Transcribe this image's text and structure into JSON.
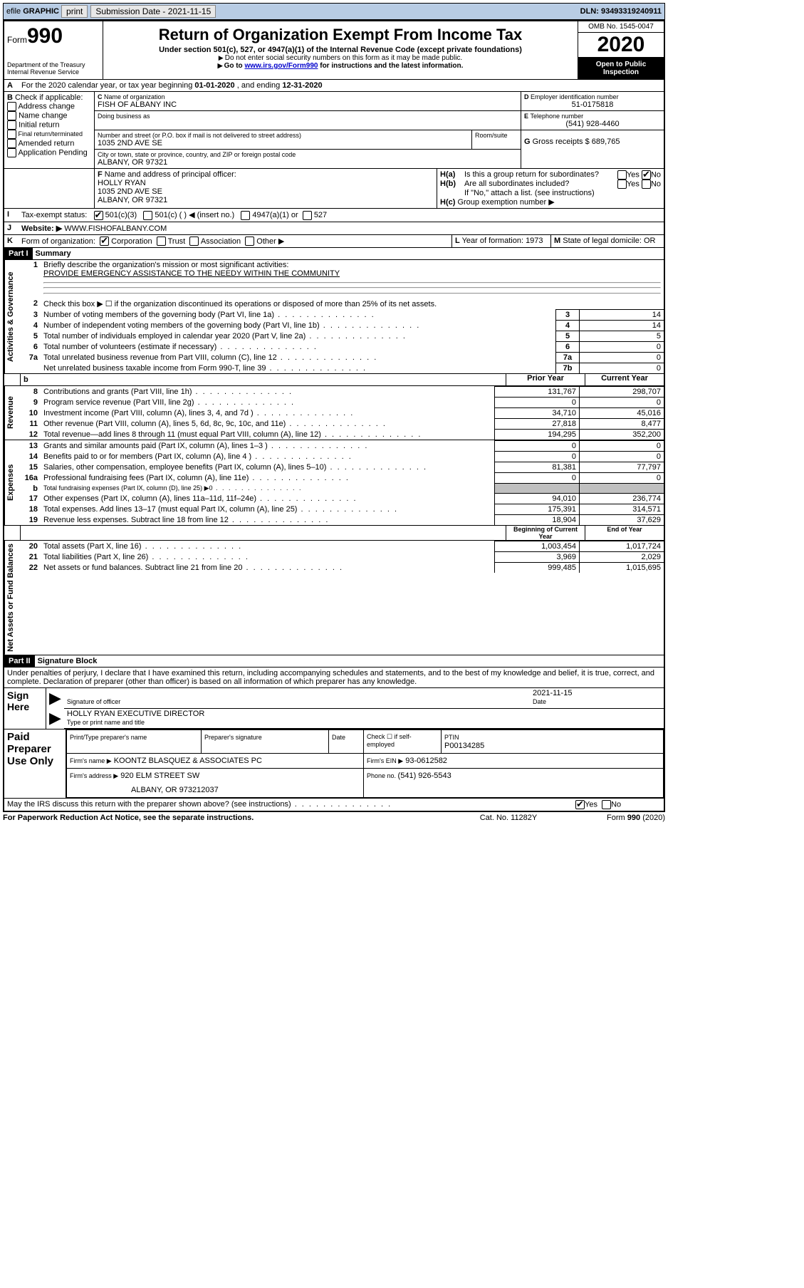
{
  "topbar": {
    "efile": "efile",
    "graphic": "GRAPHIC",
    "print": "print",
    "sub_label": "Submission Date - ",
    "sub_date": "2021-11-15",
    "dln_label": "DLN: ",
    "dln": "93493319240911"
  },
  "header": {
    "form_prefix": "Form",
    "form_no": "990",
    "dept": "Department of the Treasury\nInternal Revenue Service",
    "title": "Return of Organization Exempt From Income Tax",
    "sub1": "Under section 501(c), 527, or 4947(a)(1) of the Internal Revenue Code (except private foundations)",
    "sub2": "Do not enter social security numbers on this form as it may be made public.",
    "sub3_pre": "Go to ",
    "sub3_link": "www.irs.gov/Form990",
    "sub3_post": " for instructions and the latest information.",
    "omb": "OMB No. 1545-0047",
    "year": "2020",
    "open": "Open to Public Inspection"
  },
  "A": {
    "text": "For the 2020 calendar year, or tax year beginning ",
    "begin": "01-01-2020",
    "mid": " , and ending ",
    "end": "12-31-2020"
  },
  "B": {
    "label": "Check if applicable:",
    "items": [
      "Address change",
      "Name change",
      "Initial return",
      "Final return/terminated",
      "Amended return",
      "Application Pending"
    ]
  },
  "C": {
    "name_label": "Name of organization",
    "name": "FISH OF ALBANY INC",
    "dba_label": "Doing business as",
    "addr_label": "Number and street (or P.O. box if mail is not delivered to street address)",
    "room_label": "Room/suite",
    "addr": "1035 2ND AVE SE",
    "city_label": "City or town, state or province, country, and ZIP or foreign postal code",
    "city": "ALBANY, OR  97321"
  },
  "D": {
    "label": "Employer identification number",
    "val": "51-0175818"
  },
  "E": {
    "label": "Telephone number",
    "val": "(541) 928-4460"
  },
  "G": {
    "label": "Gross receipts $ ",
    "val": "689,765"
  },
  "F": {
    "label": "Name and address of principal officer:",
    "name": "HOLLY RYAN",
    "addr1": "1035 2ND AVE SE",
    "addr2": "ALBANY, OR  97321"
  },
  "H": {
    "a": "Is this a group return for subordinates?",
    "b": "Are all subordinates included?",
    "b_note": "If \"No,\" attach a list. (see instructions)",
    "c": "Group exemption number ▶"
  },
  "I": {
    "label": "Tax-exempt status:",
    "opts": [
      "501(c)(3)",
      "501(c) (  ) ◀ (insert no.)",
      "4947(a)(1) or",
      "527"
    ]
  },
  "J": {
    "label": "Website: ▶",
    "val": "WWW.FISHOFALBANY.COM"
  },
  "K": {
    "label": "Form of organization:",
    "opts": [
      "Corporation",
      "Trust",
      "Association",
      "Other ▶"
    ]
  },
  "L": {
    "label": "Year of formation: ",
    "val": "1973"
  },
  "M": {
    "label": "State of legal domicile: ",
    "val": "OR"
  },
  "part1": {
    "title": "Part I",
    "sub": "Summary",
    "line1_label": "Briefly describe the organization's mission or most significant activities:",
    "line1_val": "PROVIDE EMERGENCY ASSISTANCE TO THE NEEDY WITHIN THE COMMUNITY",
    "line2": "Check this box ▶ ☐  if the organization discontinued its operations or disposed of more than 25% of its net assets.",
    "hdr_prior": "Prior Year",
    "hdr_current": "Current Year",
    "hdr_beg": "Beginning of Current Year",
    "hdr_end": "End of Year",
    "lines_gov": [
      {
        "n": "3",
        "t": "Number of voting members of the governing body (Part VI, line 1a)",
        "m": "3",
        "v": "14"
      },
      {
        "n": "4",
        "t": "Number of independent voting members of the governing body (Part VI, line 1b)",
        "m": "4",
        "v": "14"
      },
      {
        "n": "5",
        "t": "Total number of individuals employed in calendar year 2020 (Part V, line 2a)",
        "m": "5",
        "v": "5"
      },
      {
        "n": "6",
        "t": "Total number of volunteers (estimate if necessary)",
        "m": "6",
        "v": "0"
      },
      {
        "n": "7a",
        "t": "Total unrelated business revenue from Part VIII, column (C), line 12",
        "m": "7a",
        "v": "0"
      },
      {
        "n": "",
        "t": "Net unrelated business taxable income from Form 990-T, line 39",
        "m": "7b",
        "v": "0"
      }
    ],
    "lines_rev": [
      {
        "n": "8",
        "t": "Contributions and grants (Part VIII, line 1h)",
        "p": "131,767",
        "c": "298,707"
      },
      {
        "n": "9",
        "t": "Program service revenue (Part VIII, line 2g)",
        "p": "0",
        "c": "0"
      },
      {
        "n": "10",
        "t": "Investment income (Part VIII, column (A), lines 3, 4, and 7d )",
        "p": "34,710",
        "c": "45,016"
      },
      {
        "n": "11",
        "t": "Other revenue (Part VIII, column (A), lines 5, 6d, 8c, 9c, 10c, and 11e)",
        "p": "27,818",
        "c": "8,477"
      },
      {
        "n": "12",
        "t": "Total revenue—add lines 8 through 11 (must equal Part VIII, column (A), line 12)",
        "p": "194,295",
        "c": "352,200"
      }
    ],
    "lines_exp": [
      {
        "n": "13",
        "t": "Grants and similar amounts paid (Part IX, column (A), lines 1–3 )",
        "p": "0",
        "c": "0"
      },
      {
        "n": "14",
        "t": "Benefits paid to or for members (Part IX, column (A), line 4 )",
        "p": "0",
        "c": "0"
      },
      {
        "n": "15",
        "t": "Salaries, other compensation, employee benefits (Part IX, column (A), lines 5–10)",
        "p": "81,381",
        "c": "77,797"
      },
      {
        "n": "16a",
        "t": "Professional fundraising fees (Part IX, column (A), line 11e)",
        "p": "0",
        "c": "0"
      },
      {
        "n": "b",
        "t": "Total fundraising expenses (Part IX, column (D), line 25) ▶0",
        "p": "",
        "c": "",
        "shade": true,
        "small": true
      },
      {
        "n": "17",
        "t": "Other expenses (Part IX, column (A), lines 11a–11d, 11f–24e)",
        "p": "94,010",
        "c": "236,774"
      },
      {
        "n": "18",
        "t": "Total expenses. Add lines 13–17 (must equal Part IX, column (A), line 25)",
        "p": "175,391",
        "c": "314,571"
      },
      {
        "n": "19",
        "t": "Revenue less expenses. Subtract line 18 from line 12",
        "p": "18,904",
        "c": "37,629"
      }
    ],
    "lines_net": [
      {
        "n": "20",
        "t": "Total assets (Part X, line 16)",
        "p": "1,003,454",
        "c": "1,017,724"
      },
      {
        "n": "21",
        "t": "Total liabilities (Part X, line 26)",
        "p": "3,969",
        "c": "2,029"
      },
      {
        "n": "22",
        "t": "Net assets or fund balances. Subtract line 21 from line 20",
        "p": "999,485",
        "c": "1,015,695"
      }
    ]
  },
  "part2": {
    "title": "Part II",
    "sub": "Signature Block",
    "perjury": "Under penalties of perjury, I declare that I have examined this return, including accompanying schedules and statements, and to the best of my knowledge and belief, it is true, correct, and complete. Declaration of preparer (other than officer) is based on all information of which preparer has any knowledge.",
    "sign_here": "Sign Here",
    "sig_officer": "Signature of officer",
    "date_label": "Date",
    "sig_date": "2021-11-15",
    "officer_name": "HOLLY RYAN EXECUTIVE DIRECTOR",
    "type_name": "Type or print name and title",
    "paid": "Paid Preparer Use Only",
    "prep_name_label": "Print/Type preparer's name",
    "prep_sig_label": "Preparer's signature",
    "check_self": "Check ☐ if self-employed",
    "ptin_label": "PTIN",
    "ptin": "P00134285",
    "firm_name_label": "Firm's name    ▶",
    "firm_name": "KOONTZ BLASQUEZ & ASSOCIATES PC",
    "firm_ein_label": "Firm's EIN ▶",
    "firm_ein": "93-0612582",
    "firm_addr_label": "Firm's address ▶",
    "firm_addr1": "920 ELM STREET SW",
    "firm_addr2": "ALBANY, OR  973212037",
    "phone_label": "Phone no. ",
    "phone": "(541) 926-5543",
    "discuss": "May the IRS discuss this return with the preparer shown above? (see instructions)",
    "paperwork": "For Paperwork Reduction Act Notice, see the separate instructions.",
    "catno": "Cat. No. 11282Y",
    "formno": "Form 990 (2020)"
  },
  "labels": {
    "yes": "Yes",
    "no": "No",
    "b": "b"
  },
  "sections": {
    "gov": "Activities & Governance",
    "rev": "Revenue",
    "exp": "Expenses",
    "net": "Net Assets or Fund Balances"
  }
}
